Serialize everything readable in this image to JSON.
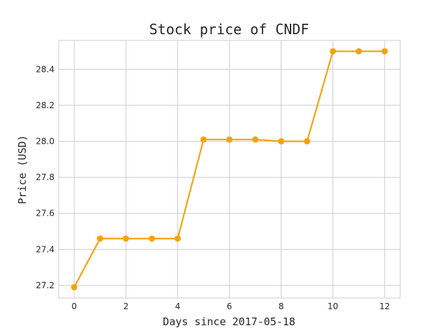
{
  "chart_data": {
    "type": "line",
    "title": "Stock price of CNDF",
    "xlabel": "Days since 2017-05-18",
    "ylabel": "Price (USD)",
    "x": [
      0,
      1,
      2,
      3,
      4,
      5,
      6,
      7,
      8,
      9,
      10,
      11,
      12
    ],
    "series": [
      {
        "name": "",
        "values": [
          27.19,
          27.46,
          27.46,
          27.46,
          27.46,
          28.01,
          28.01,
          28.01,
          28.0,
          28.0,
          28.5,
          28.5,
          28.5
        ],
        "color": "#f5a30f"
      }
    ],
    "xlim": [
      -0.6,
      12.6
    ],
    "ylim": [
      27.13,
      28.56
    ],
    "xticks": [
      0,
      2,
      4,
      6,
      8,
      10,
      12
    ],
    "yticks": [
      27.2,
      27.4,
      27.6,
      27.8,
      28.0,
      28.2,
      28.4
    ],
    "xtick_labels": [
      "0",
      "2",
      "4",
      "6",
      "8",
      "10",
      "12"
    ],
    "ytick_labels": [
      "27.2",
      "27.4",
      "27.6",
      "27.8",
      "28.0",
      "28.2",
      "28.4"
    ],
    "grid": true,
    "markers": true
  }
}
